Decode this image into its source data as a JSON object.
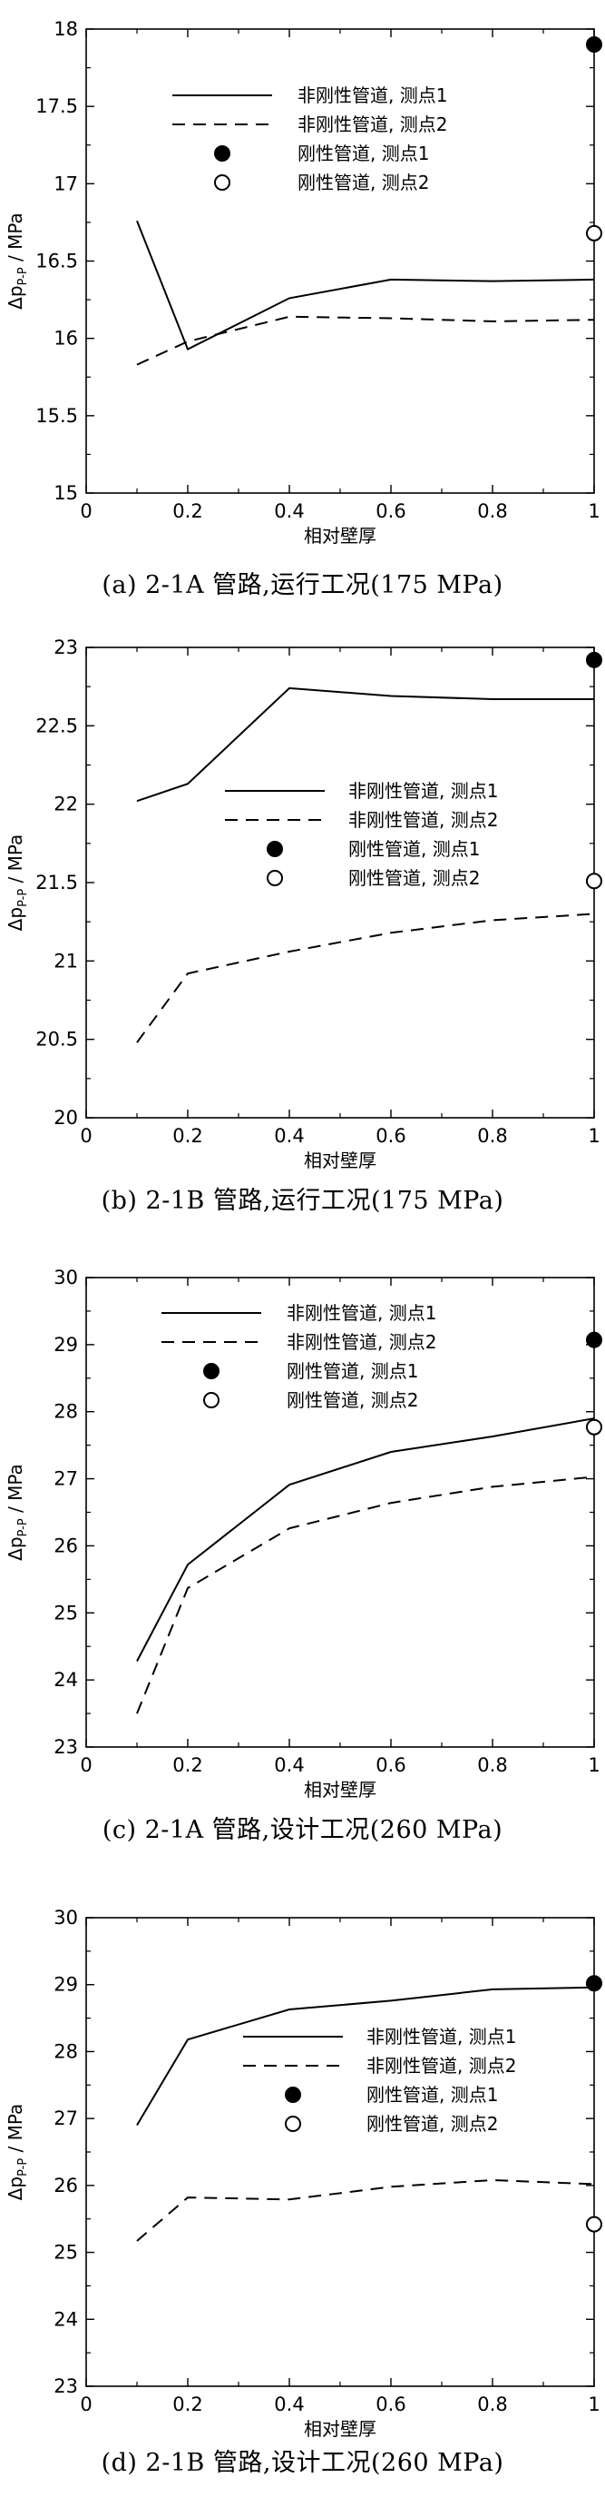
{
  "chart_data": [
    {
      "type": "line",
      "caption": "(a) 2-1A 管路,运行工况(175 MPa)",
      "xlabel": "相对壁厚",
      "ylabel_main": "Δp",
      "ylabel_sub": "P-P",
      "ylabel_unit": " / MPa",
      "xlim": [
        0,
        1
      ],
      "ylim": [
        15,
        18
      ],
      "xticks": [
        0,
        0.2,
        0.4,
        0.6,
        0.8,
        1
      ],
      "xtick_labels": [
        "0",
        "0.2",
        "0.4",
        "0.6",
        "0.8",
        "1"
      ],
      "yticks": [
        15,
        15.5,
        16,
        16.5,
        17,
        17.5,
        18
      ],
      "ytick_labels": [
        "15",
        "15.5",
        "16",
        "16.5",
        "17",
        "17.5",
        "18"
      ],
      "legend_position": "top-right",
      "series": [
        {
          "name": "非刚性管道, 测点1",
          "style": "solid",
          "x": [
            0.1,
            0.2,
            0.4,
            0.6,
            0.8,
            1.0
          ],
          "y": [
            16.76,
            15.93,
            16.26,
            16.38,
            16.37,
            16.38
          ]
        },
        {
          "name": "非刚性管道, 测点2",
          "style": "dashed",
          "x": [
            0.1,
            0.2,
            0.4,
            0.6,
            0.8,
            1.0
          ],
          "y": [
            15.83,
            15.98,
            16.14,
            16.13,
            16.11,
            16.12
          ]
        }
      ],
      "points": [
        {
          "name": "刚性管道, 测点1",
          "style": "filled",
          "x": 1.0,
          "y": 17.9
        },
        {
          "name": "刚性管道, 测点2",
          "style": "open",
          "x": 1.0,
          "y": 16.68
        }
      ]
    },
    {
      "type": "line",
      "caption": "(b) 2-1B 管路,运行工况(175 MPa)",
      "xlabel": "相对壁厚",
      "ylabel_main": "Δp",
      "ylabel_sub": "P-P",
      "ylabel_unit": " / MPa",
      "xlim": [
        0,
        1
      ],
      "ylim": [
        20,
        23
      ],
      "xticks": [
        0,
        0.2,
        0.4,
        0.6,
        0.8,
        1
      ],
      "xtick_labels": [
        "0",
        "0.2",
        "0.4",
        "0.6",
        "0.8",
        "1"
      ],
      "yticks": [
        20,
        20.5,
        21,
        21.5,
        22,
        22.5,
        23
      ],
      "ytick_labels": [
        "20",
        "20.5",
        "21",
        "21.5",
        "22",
        "22.5",
        "23"
      ],
      "legend_position": "center-right",
      "series": [
        {
          "name": "非刚性管道, 测点1",
          "style": "solid",
          "x": [
            0.1,
            0.2,
            0.4,
            0.6,
            0.8,
            1.0
          ],
          "y": [
            22.02,
            22.13,
            22.74,
            22.69,
            22.67,
            22.67
          ]
        },
        {
          "name": "非刚性管道, 测点2",
          "style": "dashed",
          "x": [
            0.1,
            0.2,
            0.4,
            0.6,
            0.8,
            1.0
          ],
          "y": [
            20.48,
            20.92,
            21.06,
            21.18,
            21.26,
            21.3
          ]
        }
      ],
      "points": [
        {
          "name": "刚性管道, 测点1",
          "style": "filled",
          "x": 1.0,
          "y": 22.92
        },
        {
          "name": "刚性管道, 测点2",
          "style": "open",
          "x": 1.0,
          "y": 21.51
        }
      ]
    },
    {
      "type": "line",
      "caption": "(c) 2-1A 管路,设计工况(260 MPa)",
      "xlabel": "相对壁厚",
      "ylabel_main": "Δp",
      "ylabel_sub": "P-P",
      "ylabel_unit": " / MPa",
      "xlim": [
        0,
        1
      ],
      "ylim": [
        23,
        30
      ],
      "xticks": [
        0,
        0.2,
        0.4,
        0.6,
        0.8,
        1
      ],
      "xtick_labels": [
        "0",
        "0.2",
        "0.4",
        "0.6",
        "0.8",
        "1"
      ],
      "yticks": [
        23,
        24,
        25,
        26,
        27,
        28,
        29,
        30
      ],
      "ytick_labels": [
        "23",
        "24",
        "25",
        "26",
        "27",
        "28",
        "29",
        "30"
      ],
      "legend_position": "top-right",
      "series": [
        {
          "name": "非刚性管道, 测点1",
          "style": "solid",
          "x": [
            0.1,
            0.2,
            0.4,
            0.6,
            0.8,
            1.0
          ],
          "y": [
            24.28,
            25.72,
            26.91,
            27.4,
            27.63,
            27.9
          ]
        },
        {
          "name": "非刚性管道, 测点2",
          "style": "dashed",
          "x": [
            0.1,
            0.2,
            0.4,
            0.6,
            0.8,
            1.0
          ],
          "y": [
            23.5,
            25.37,
            26.26,
            26.64,
            26.88,
            27.03
          ]
        }
      ],
      "points": [
        {
          "name": "刚性管道, 测点1",
          "style": "filled",
          "x": 1.0,
          "y": 29.07
        },
        {
          "name": "刚性管道, 测点2",
          "style": "open",
          "x": 1.0,
          "y": 27.77
        }
      ]
    },
    {
      "type": "line",
      "caption": "(d) 2-1B 管路,设计工况(260 MPa)",
      "xlabel": "相对壁厚",
      "ylabel_main": "Δp",
      "ylabel_sub": "P-P",
      "ylabel_unit": " / MPa",
      "xlim": [
        0,
        1
      ],
      "ylim": [
        23,
        30
      ],
      "xticks": [
        0,
        0.2,
        0.4,
        0.6,
        0.8,
        1
      ],
      "xtick_labels": [
        "0",
        "0.2",
        "0.4",
        "0.6",
        "0.8",
        "1"
      ],
      "yticks": [
        23,
        24,
        25,
        26,
        27,
        28,
        29,
        30
      ],
      "ytick_labels": [
        "23",
        "24",
        "25",
        "26",
        "27",
        "28",
        "29",
        "30"
      ],
      "legend_position": "center-right",
      "series": [
        {
          "name": "非刚性管道, 测点1",
          "style": "solid",
          "x": [
            0.1,
            0.2,
            0.4,
            0.6,
            0.8,
            1.0
          ],
          "y": [
            26.9,
            28.18,
            28.63,
            28.76,
            28.93,
            28.96
          ]
        },
        {
          "name": "非刚性管道, 测点2",
          "style": "dashed",
          "x": [
            0.1,
            0.2,
            0.4,
            0.6,
            0.8,
            1.0
          ],
          "y": [
            25.17,
            25.82,
            25.79,
            25.98,
            26.08,
            26.02
          ]
        }
      ],
      "points": [
        {
          "name": "刚性管道, 测点1",
          "style": "filled",
          "x": 1.0,
          "y": 29.02
        },
        {
          "name": "刚性管道, 测点2",
          "style": "open",
          "x": 1.0,
          "y": 25.42
        }
      ]
    }
  ]
}
